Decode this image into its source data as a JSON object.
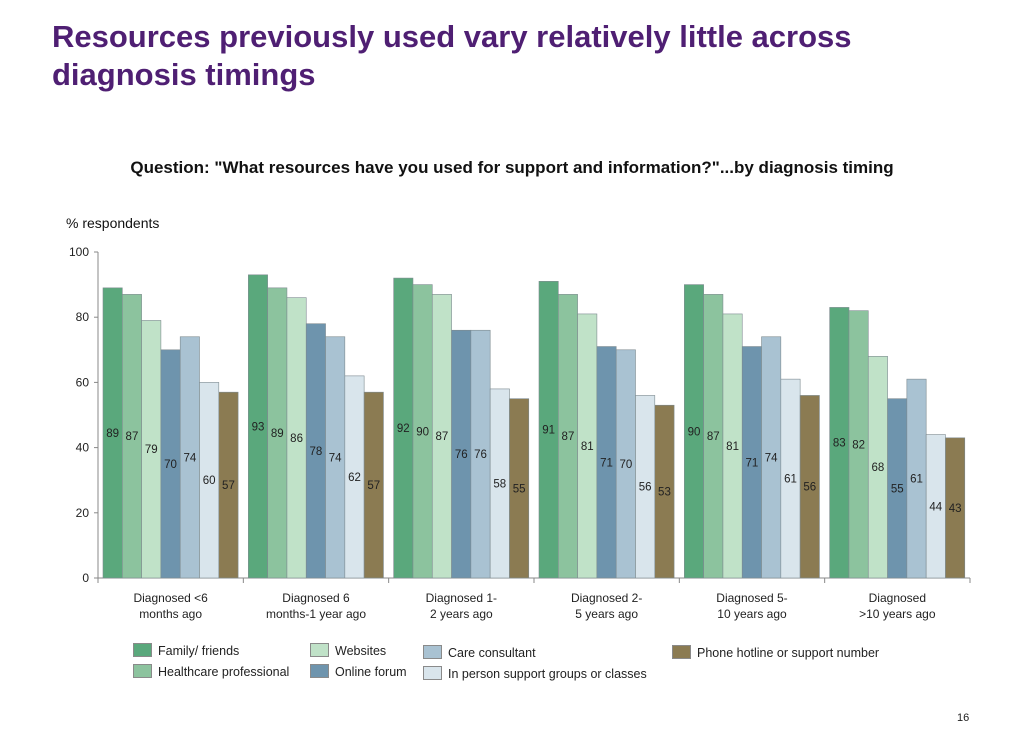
{
  "title": "Resources previously used vary relatively little across diagnosis timings",
  "question": "Question: \"What resources have you used for support and information?\"...by diagnosis timing",
  "page_number": "16",
  "chart_data": {
    "type": "bar",
    "ylabel": "% respondents",
    "ylim": [
      0,
      100
    ],
    "yticks": [
      0,
      20,
      40,
      60,
      80,
      100
    ],
    "categories": [
      "Diagnosed <6 months ago",
      "Diagnosed 6 months-1 year ago",
      "Diagnosed 1- 2 years ago",
      "Diagnosed 2- 5 years ago",
      "Diagnosed 5- 10 years ago",
      "Diagnosed >10 years ago"
    ],
    "category_lines": [
      [
        "Diagnosed <6",
        "months ago"
      ],
      [
        "Diagnosed 6",
        "months-1 year ago"
      ],
      [
        "Diagnosed 1-",
        "2 years ago"
      ],
      [
        "Diagnosed 2-",
        "5 years ago"
      ],
      [
        "Diagnosed 5-",
        "10 years ago"
      ],
      [
        "Diagnosed",
        ">10 years ago"
      ]
    ],
    "series": [
      {
        "name": "Family/ friends",
        "color": "#5aa87c",
        "values": [
          89,
          93,
          92,
          91,
          90,
          83
        ]
      },
      {
        "name": "Healthcare professional",
        "color": "#8cc39e",
        "values": [
          87,
          89,
          90,
          87,
          87,
          82
        ]
      },
      {
        "name": "Websites",
        "color": "#c0e2c8",
        "values": [
          79,
          86,
          87,
          81,
          81,
          68
        ]
      },
      {
        "name": "Online forum",
        "color": "#6e94ad",
        "values": [
          70,
          78,
          76,
          71,
          71,
          55
        ]
      },
      {
        "name": "Care consultant",
        "color": "#a9c2d2",
        "values": [
          74,
          74,
          76,
          70,
          74,
          61
        ]
      },
      {
        "name": "In person support groups or classes",
        "color": "#d9e5ec",
        "values": [
          60,
          62,
          58,
          56,
          61,
          44
        ]
      },
      {
        "name": "Phone hotline or support number",
        "color": "#8b7b52",
        "values": [
          57,
          57,
          55,
          53,
          56,
          43
        ]
      }
    ]
  }
}
